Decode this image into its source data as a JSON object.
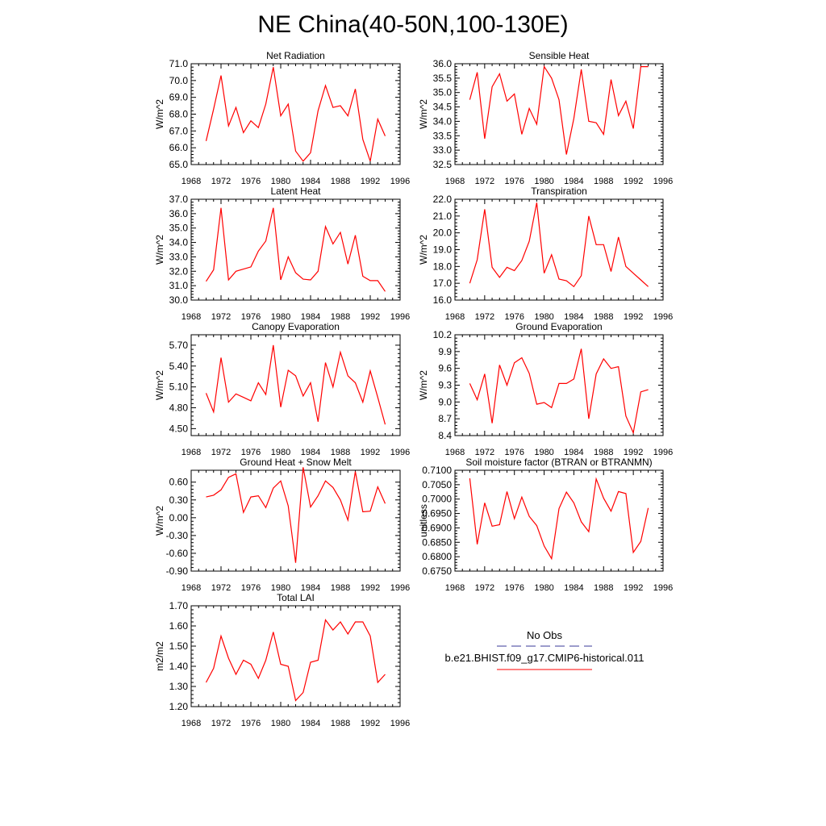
{
  "page_title": "NE China(40-50N,100-130E)",
  "legend": {
    "obs_label": "No Obs",
    "obs_color": "#3a3a9a",
    "model_label": "b.e21.BHIST.f09_g17.CMIP6-historical.011",
    "model_color": "#ff0000"
  },
  "chart_data": [
    {
      "type": "line",
      "title": "Net Radiation",
      "xlabel": "",
      "ylabel": "W/m^2",
      "xlim": [
        1968,
        1996
      ],
      "xticks": [
        "1968",
        "1972",
        "1976",
        "1980",
        "1984",
        "1988",
        "1992",
        "1996"
      ],
      "ylim": [
        65.0,
        71.0
      ],
      "yticks": [
        "65.0",
        "66.0",
        "67.0",
        "68.0",
        "69.0",
        "70.0",
        "71.0"
      ],
      "series": [
        {
          "color": "#ff0000",
          "x": [
            1970,
            1971,
            1972,
            1973,
            1974,
            1975,
            1976,
            1977,
            1978,
            1979,
            1980,
            1981,
            1982,
            1983,
            1984,
            1985,
            1986,
            1987,
            1988,
            1989,
            1990,
            1991,
            1992,
            1993,
            1994
          ],
          "values": [
            66.4,
            68.3,
            70.3,
            67.3,
            68.4,
            66.9,
            67.6,
            67.2,
            68.6,
            70.8,
            67.9,
            68.6,
            65.8,
            65.2,
            65.7,
            68.2,
            69.7,
            68.4,
            68.5,
            67.9,
            69.5,
            66.5,
            65.2,
            67.7,
            66.7
          ]
        }
      ]
    },
    {
      "type": "line",
      "title": "Sensible Heat",
      "xlabel": "",
      "ylabel": "W/m^2",
      "xlim": [
        1968,
        1996
      ],
      "xticks": [
        "1968",
        "1972",
        "1976",
        "1980",
        "1984",
        "1988",
        "1992",
        "1996"
      ],
      "ylim": [
        32.5,
        36.0
      ],
      "yticks": [
        "32.5",
        "33.0",
        "33.5",
        "34.0",
        "34.5",
        "35.0",
        "35.5",
        "36.0"
      ],
      "series": [
        {
          "color": "#ff0000",
          "x": [
            1970,
            1971,
            1972,
            1973,
            1974,
            1975,
            1976,
            1977,
            1978,
            1979,
            1980,
            1981,
            1982,
            1983,
            1984,
            1985,
            1986,
            1987,
            1988,
            1989,
            1990,
            1991,
            1992,
            1993,
            1994
          ],
          "values": [
            34.75,
            35.7,
            33.4,
            35.2,
            35.65,
            34.7,
            34.95,
            33.55,
            34.45,
            33.9,
            35.9,
            35.5,
            34.75,
            32.85,
            34.1,
            35.8,
            34.0,
            33.95,
            33.55,
            35.45,
            34.2,
            34.7,
            33.75,
            35.9,
            35.9
          ]
        }
      ]
    },
    {
      "type": "line",
      "title": "Latent Heat",
      "xlabel": "",
      "ylabel": "W/m^2",
      "xlim": [
        1968,
        1996
      ],
      "xticks": [
        "1968",
        "1972",
        "1976",
        "1980",
        "1984",
        "1988",
        "1992",
        "1996"
      ],
      "ylim": [
        30.0,
        37.0
      ],
      "yticks": [
        "30.0",
        "31.0",
        "32.0",
        "33.0",
        "34.0",
        "35.0",
        "36.0",
        "37.0"
      ],
      "series": [
        {
          "color": "#ff0000",
          "x": [
            1970,
            1971,
            1972,
            1973,
            1974,
            1975,
            1976,
            1977,
            1978,
            1979,
            1980,
            1981,
            1982,
            1983,
            1984,
            1985,
            1986,
            1987,
            1988,
            1989,
            1990,
            1991,
            1992,
            1993,
            1994
          ],
          "values": [
            31.3,
            32.1,
            36.4,
            31.4,
            32.0,
            32.15,
            32.3,
            33.4,
            34.1,
            36.4,
            31.4,
            33.0,
            31.9,
            31.45,
            31.4,
            32.0,
            35.1,
            33.9,
            34.7,
            32.5,
            34.5,
            31.65,
            31.35,
            31.35,
            30.6
          ]
        }
      ]
    },
    {
      "type": "line",
      "title": "Transpiration",
      "xlabel": "",
      "ylabel": "W/m^2",
      "xlim": [
        1968,
        1996
      ],
      "xticks": [
        "1968",
        "1972",
        "1976",
        "1980",
        "1984",
        "1988",
        "1992",
        "1996"
      ],
      "ylim": [
        16.0,
        22.0
      ],
      "yticks": [
        "16.0",
        "17.0",
        "18.0",
        "19.0",
        "20.0",
        "21.0",
        "22.0"
      ],
      "series": [
        {
          "color": "#ff0000",
          "x": [
            1970,
            1971,
            1972,
            1973,
            1974,
            1975,
            1976,
            1977,
            1978,
            1979,
            1980,
            1981,
            1982,
            1983,
            1984,
            1985,
            1986,
            1987,
            1988,
            1989,
            1990,
            1991,
            1992,
            1993,
            1994
          ],
          "values": [
            17.0,
            18.4,
            21.4,
            17.95,
            17.35,
            17.95,
            17.75,
            18.35,
            19.5,
            21.8,
            17.6,
            18.7,
            17.25,
            17.15,
            16.8,
            17.45,
            21.0,
            19.3,
            19.3,
            17.7,
            19.75,
            18.0,
            17.6,
            17.2,
            16.8
          ]
        }
      ]
    },
    {
      "type": "line",
      "title": "Canopy Evaporation",
      "xlabel": "",
      "ylabel": "W/m^2",
      "xlim": [
        1968,
        1996
      ],
      "xticks": [
        "1968",
        "1972",
        "1976",
        "1980",
        "1984",
        "1988",
        "1992",
        "1996"
      ],
      "ylim": [
        4.4,
        5.85
      ],
      "yticks": [
        "4.50",
        "4.80",
        "5.10",
        "5.40",
        "5.70"
      ],
      "ytick_values": [
        4.5,
        4.8,
        5.1,
        5.4,
        5.7
      ],
      "series": [
        {
          "color": "#ff0000",
          "x": [
            1970,
            1971,
            1972,
            1973,
            1974,
            1975,
            1976,
            1977,
            1978,
            1979,
            1980,
            1981,
            1982,
            1983,
            1984,
            1985,
            1986,
            1987,
            1988,
            1989,
            1990,
            1991,
            1992,
            1993,
            1994
          ],
          "values": [
            5.01,
            4.74,
            5.52,
            4.88,
            5.0,
            4.95,
            4.9,
            5.16,
            4.99,
            5.7,
            4.81,
            5.34,
            5.26,
            4.97,
            5.16,
            4.6,
            5.45,
            5.1,
            5.6,
            5.26,
            5.16,
            4.88,
            5.33,
            4.95,
            4.56
          ]
        }
      ]
    },
    {
      "type": "line",
      "title": "Ground Evaporation",
      "xlabel": "",
      "ylabel": "W/m^2",
      "xlim": [
        1968,
        1996
      ],
      "xticks": [
        "1968",
        "1972",
        "1976",
        "1980",
        "1984",
        "1988",
        "1992",
        "1996"
      ],
      "ylim": [
        8.4,
        10.2
      ],
      "yticks": [
        "8.4",
        "8.7",
        "9.0",
        "9.3",
        "9.6",
        "9.9",
        "10.2"
      ],
      "series": [
        {
          "color": "#ff0000",
          "x": [
            1970,
            1971,
            1972,
            1973,
            1974,
            1975,
            1976,
            1977,
            1978,
            1979,
            1980,
            1981,
            1982,
            1983,
            1984,
            1985,
            1986,
            1987,
            1988,
            1989,
            1990,
            1991,
            1992,
            1993,
            1994
          ],
          "values": [
            9.33,
            9.04,
            9.5,
            8.62,
            9.66,
            9.3,
            9.7,
            9.79,
            9.51,
            8.96,
            8.99,
            8.9,
            9.33,
            9.33,
            9.41,
            9.95,
            8.7,
            9.5,
            9.77,
            9.6,
            9.63,
            8.75,
            8.45,
            9.18,
            9.22
          ]
        }
      ]
    },
    {
      "type": "line",
      "title": "Ground Heat + Snow Melt",
      "xlabel": "",
      "ylabel": "W/m^2",
      "xlim": [
        1968,
        1996
      ],
      "xticks": [
        "1968",
        "1972",
        "1976",
        "1980",
        "1984",
        "1988",
        "1992",
        "1996"
      ],
      "ylim": [
        -0.9,
        0.8
      ],
      "yticks": [
        "-0.90",
        "-0.60",
        "-0.30",
        "0.00",
        "0.30",
        "0.60"
      ],
      "ytick_values": [
        -0.9,
        -0.6,
        -0.3,
        0.0,
        0.3,
        0.6
      ],
      "series": [
        {
          "color": "#ff0000",
          "x": [
            1970,
            1971,
            1972,
            1973,
            1974,
            1975,
            1976,
            1977,
            1978,
            1979,
            1980,
            1981,
            1982,
            1983,
            1984,
            1985,
            1986,
            1987,
            1988,
            1989,
            1990,
            1991,
            1992,
            1993,
            1994
          ],
          "values": [
            0.35,
            0.38,
            0.47,
            0.68,
            0.74,
            0.09,
            0.35,
            0.37,
            0.17,
            0.5,
            0.62,
            0.2,
            -0.76,
            0.85,
            0.18,
            0.37,
            0.62,
            0.51,
            0.3,
            -0.04,
            0.78,
            0.1,
            0.11,
            0.52,
            0.24
          ]
        }
      ]
    },
    {
      "type": "line",
      "title": "Soil moisture factor (BTRAN or BTRANMN)",
      "xlabel": "",
      "ylabel": "unitless",
      "xlim": [
        1968,
        1996
      ],
      "xticks": [
        "1968",
        "1972",
        "1976",
        "1980",
        "1984",
        "1988",
        "1992",
        "1996"
      ],
      "ylim": [
        0.675,
        0.71
      ],
      "yticks": [
        "0.6750",
        "0.6800",
        "0.6850",
        "0.6900",
        "0.6950",
        "0.7000",
        "0.7050",
        "0.7100"
      ],
      "series": [
        {
          "color": "#ff0000",
          "x": [
            1970,
            1971,
            1972,
            1973,
            1974,
            1975,
            1976,
            1977,
            1978,
            1979,
            1980,
            1981,
            1982,
            1983,
            1984,
            1985,
            1986,
            1987,
            1988,
            1989,
            1990,
            1991,
            1992,
            1993,
            1994
          ],
          "values": [
            0.7072,
            0.6843,
            0.6987,
            0.6906,
            0.6911,
            0.7026,
            0.6932,
            0.7007,
            0.694,
            0.6908,
            0.6837,
            0.6793,
            0.6967,
            0.7024,
            0.6987,
            0.6921,
            0.6887,
            0.707,
            0.7003,
            0.6958,
            0.7026,
            0.7019,
            0.6815,
            0.6853,
            0.6969
          ]
        }
      ]
    },
    {
      "type": "line",
      "title": "Total LAI",
      "xlabel": "",
      "ylabel": "m2/m2",
      "xlim": [
        1968,
        1996
      ],
      "xticks": [
        "1968",
        "1972",
        "1976",
        "1980",
        "1984",
        "1988",
        "1992",
        "1996"
      ],
      "ylim": [
        1.2,
        1.7
      ],
      "yticks": [
        "1.20",
        "1.30",
        "1.40",
        "1.50",
        "1.60",
        "1.70"
      ],
      "series": [
        {
          "color": "#ff0000",
          "x": [
            1970,
            1971,
            1972,
            1973,
            1974,
            1975,
            1976,
            1977,
            1978,
            1979,
            1980,
            1981,
            1982,
            1983,
            1984,
            1985,
            1986,
            1987,
            1988,
            1989,
            1990,
            1991,
            1992,
            1993,
            1994
          ],
          "values": [
            1.32,
            1.39,
            1.55,
            1.44,
            1.36,
            1.43,
            1.41,
            1.34,
            1.43,
            1.57,
            1.41,
            1.4,
            1.23,
            1.27,
            1.42,
            1.43,
            1.63,
            1.58,
            1.62,
            1.56,
            1.62,
            1.62,
            1.55,
            1.32,
            1.36
          ]
        }
      ]
    }
  ]
}
